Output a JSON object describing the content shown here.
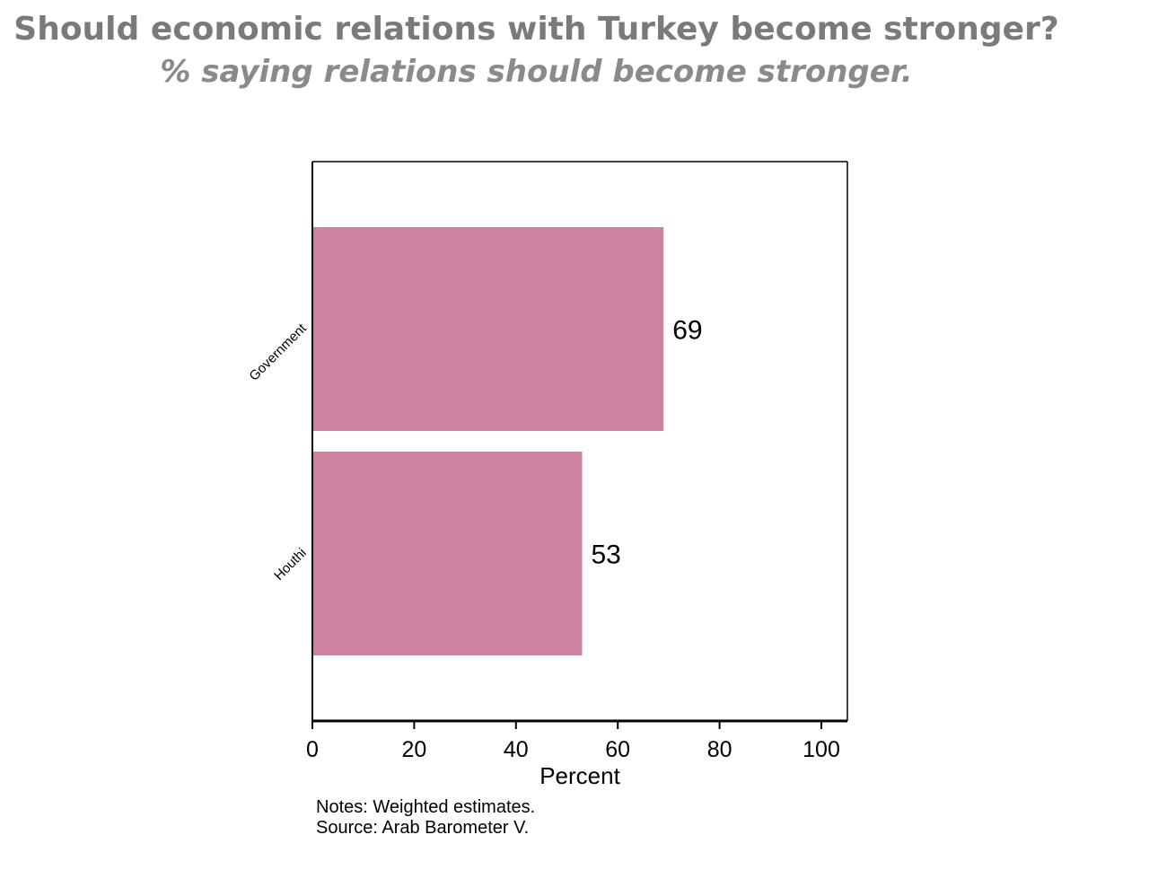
{
  "title": "Should economic relations with Turkey become stronger?",
  "subtitle": "% saying relations should become stronger.",
  "notes": "Notes: Weighted estimates.",
  "source": "Source: Arab Barometer V.",
  "colors": {
    "bar": "#cd82a0",
    "axis": "#000000"
  },
  "chart_data": {
    "type": "bar",
    "orientation": "horizontal",
    "categories": [
      "Government",
      "Houthi"
    ],
    "values": [
      69,
      53
    ],
    "data_labels": [
      "69",
      "53"
    ],
    "xlabel": "Percent",
    "ylabel": "",
    "xlim": [
      0,
      100
    ],
    "xticks": [
      0,
      20,
      40,
      60,
      80,
      100
    ],
    "xtick_labels": [
      "0",
      "20",
      "40",
      "60",
      "80",
      "100"
    ],
    "grid": false,
    "legend": "none"
  }
}
